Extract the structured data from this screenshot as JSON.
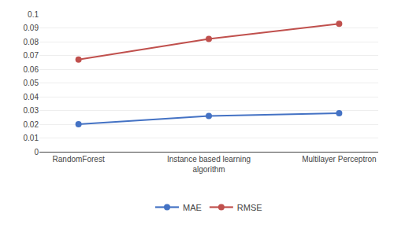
{
  "chart_data": {
    "type": "line",
    "categories": [
      "RandomForest",
      "Instance based learning\nalgorithm",
      "Multilayer Perceptron"
    ],
    "series": [
      {
        "name": "MAE",
        "color": "#4472C4",
        "values": [
          0.02,
          0.026,
          0.028
        ],
        "marker": "circle"
      },
      {
        "name": "RMSE",
        "color": "#C0504D",
        "values": [
          0.067,
          0.082,
          0.093
        ],
        "marker": "circle"
      }
    ],
    "ylim": [
      0,
      0.1
    ],
    "yticks": [
      0,
      0.01,
      0.02,
      0.03,
      0.04,
      0.05,
      0.06,
      0.07,
      0.08,
      0.09,
      0.1
    ],
    "grid": true,
    "legend": "bottom"
  }
}
